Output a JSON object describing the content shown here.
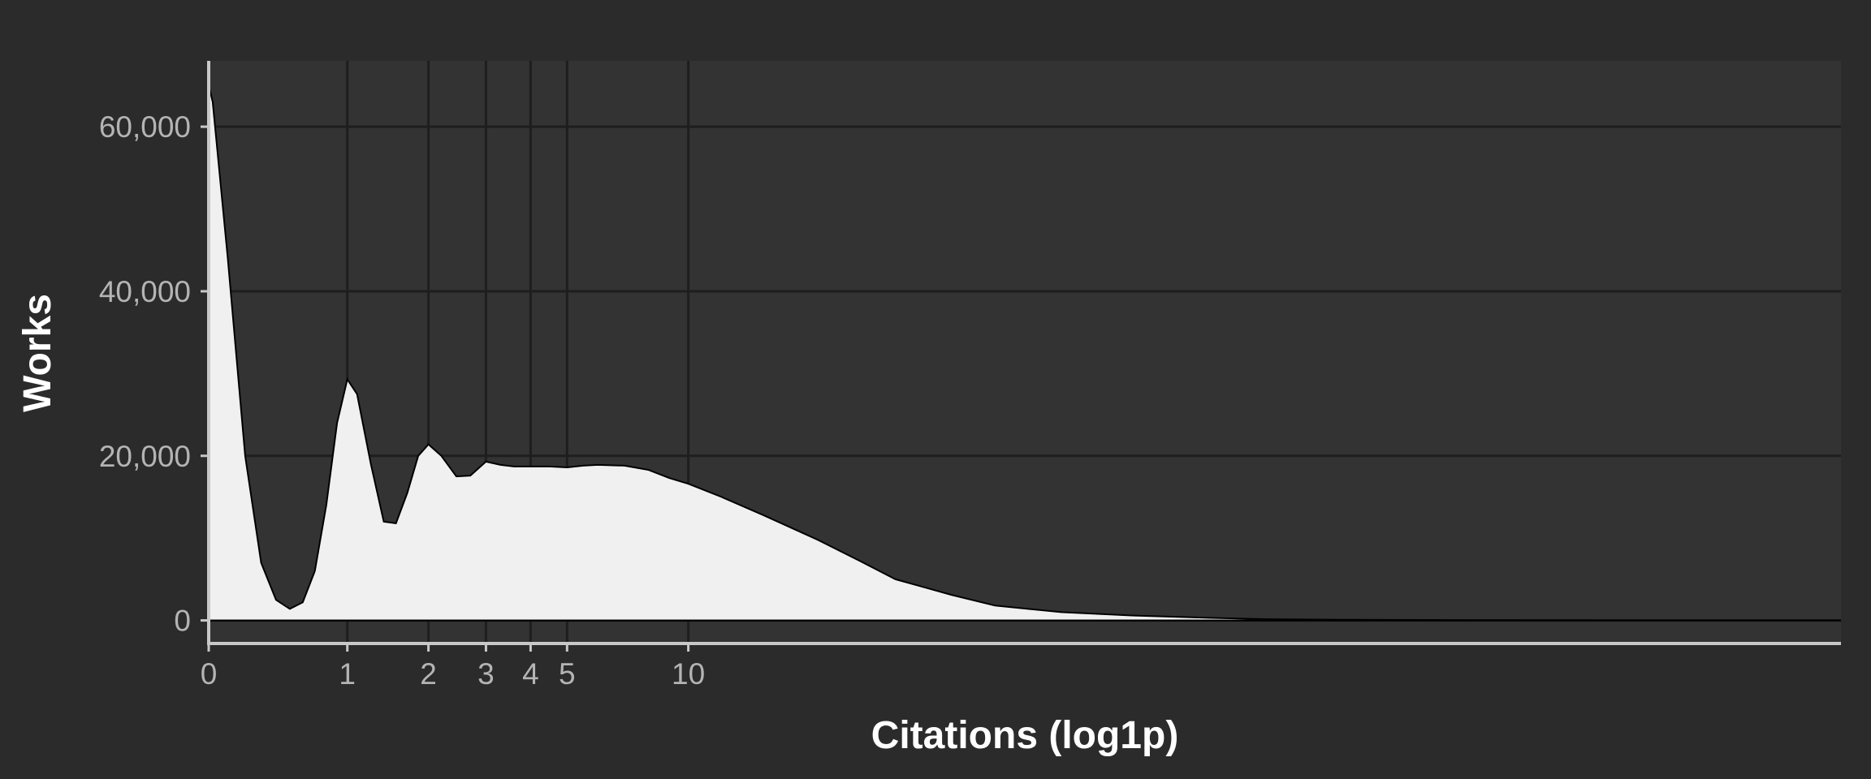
{
  "chart_data": {
    "type": "area",
    "title": "",
    "xlabel": "Citations (log1p)",
    "ylabel": "Works",
    "x_scale": "log1p",
    "x_ticks": [
      0,
      1,
      2,
      3,
      4,
      5,
      10
    ],
    "x_tick_labels": [
      "0",
      "1",
      "2",
      "3",
      "4",
      "5",
      "10"
    ],
    "y_ticks": [
      0,
      20000,
      40000,
      60000
    ],
    "y_tick_labels": [
      "0",
      "20,000",
      "40,000",
      "60,000"
    ],
    "xlim": [
      0,
      3500
    ],
    "ylim": [
      -3000,
      68000
    ],
    "grid": true,
    "legend": "none",
    "fill_color": "#f0f0f0",
    "line_color": "#000000",
    "series": [
      {
        "x": [
          0,
          0.02,
          0.1,
          0.2,
          0.3,
          0.4,
          0.5,
          0.6,
          0.7,
          0.8,
          0.9,
          1,
          1.1,
          1.25,
          1.4,
          1.55,
          1.7,
          1.85,
          2,
          2.2,
          2.45,
          2.7,
          3,
          3.3,
          3.6,
          4,
          4.5,
          5,
          5.5,
          6,
          7,
          8,
          9,
          10,
          12,
          15,
          20,
          25,
          30,
          40,
          50,
          70,
          100,
          150,
          200,
          300,
          500,
          1000,
          2000,
          3500
        ],
        "values": [
          65000,
          63000,
          44000,
          20000,
          7000,
          2500,
          1400,
          2200,
          6000,
          14000,
          24000,
          29300,
          27500,
          19000,
          12000,
          11800,
          15500,
          20000,
          21400,
          20000,
          17500,
          17600,
          19300,
          18900,
          18700,
          18700,
          18700,
          18600,
          18800,
          18900,
          18800,
          18300,
          17300,
          16600,
          15000,
          12800,
          9800,
          7200,
          5000,
          3100,
          1800,
          1000,
          600,
          300,
          150,
          80,
          40,
          15,
          5,
          2
        ]
      }
    ]
  }
}
